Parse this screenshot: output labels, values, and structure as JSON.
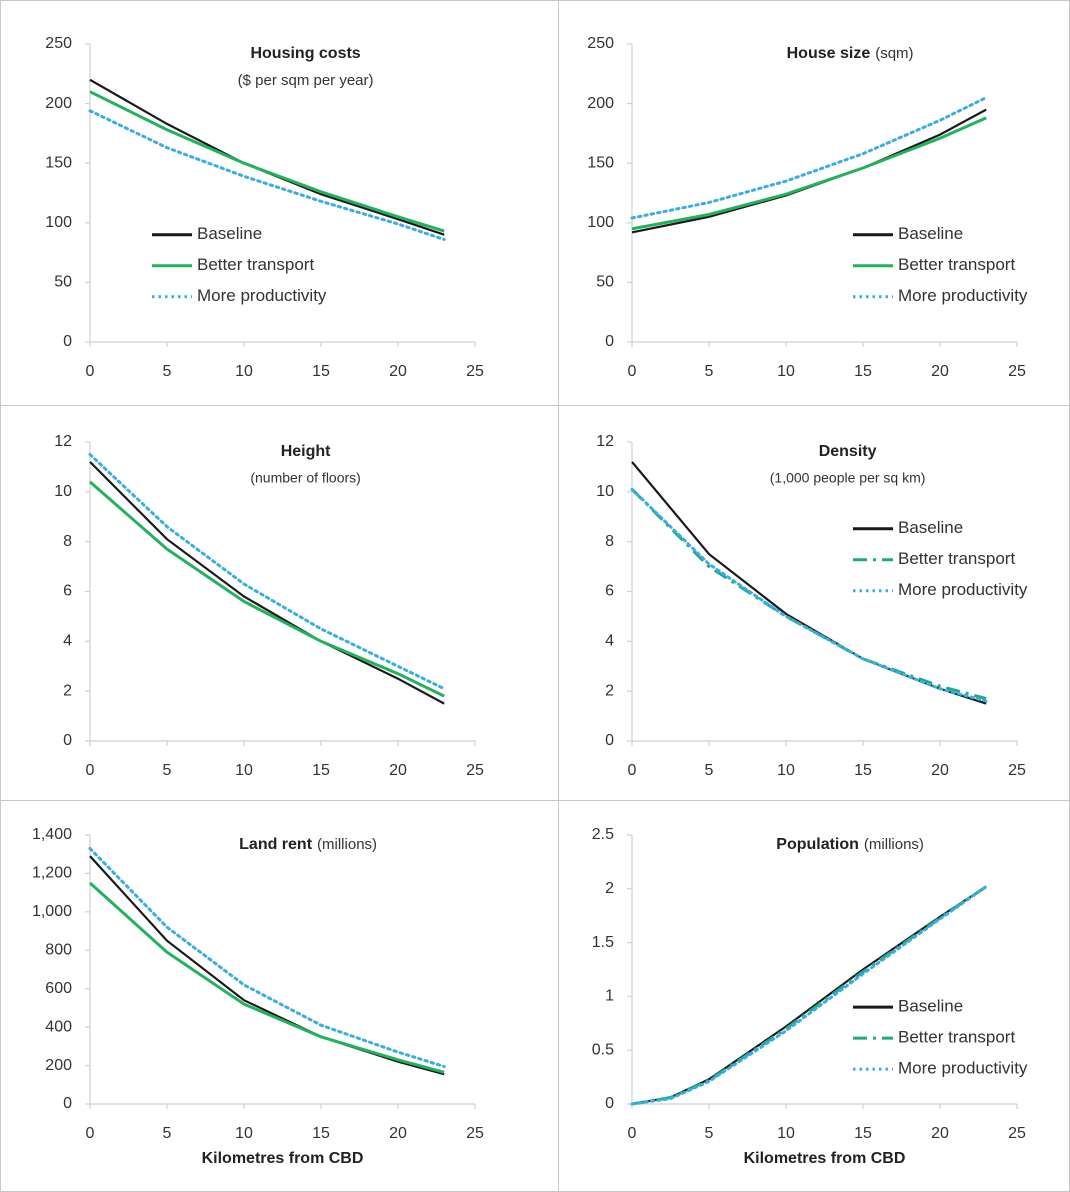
{
  "chart_data": [
    {
      "type": "line",
      "title": "Housing costs",
      "subtitle": "($ per sqm per year)",
      "x": [
        0,
        5,
        10,
        15,
        20,
        23
      ],
      "series": [
        {
          "name": "Baseline",
          "color": "#1a1a1a",
          "style": "solid",
          "values": [
            220,
            183,
            150,
            124,
            103,
            90
          ]
        },
        {
          "name": "Better transport",
          "color": "#22b15c",
          "style": "solid",
          "values": [
            210,
            178,
            150,
            126,
            105,
            93
          ]
        },
        {
          "name": "More productivity",
          "color": "#3aaee0",
          "style": "dotted",
          "values": [
            194,
            163,
            139,
            118,
            99,
            86
          ]
        }
      ],
      "xlim": [
        0,
        25
      ],
      "xticks": [
        0,
        5,
        10,
        15,
        20,
        25
      ],
      "ylim": [
        0,
        250
      ],
      "yticks": [
        0,
        50,
        100,
        150,
        200,
        250
      ],
      "legend": "middle-left"
    },
    {
      "type": "line",
      "title": "House size",
      "subtitle": "(sqm)",
      "x": [
        0,
        5,
        10,
        15,
        20,
        23
      ],
      "series": [
        {
          "name": "Baseline",
          "color": "#1a1a1a",
          "style": "solid",
          "values": [
            92,
            105,
            123,
            146,
            174,
            195
          ]
        },
        {
          "name": "Better transport",
          "color": "#22b15c",
          "style": "solid",
          "values": [
            95,
            107,
            124,
            146,
            171,
            188
          ]
        },
        {
          "name": "More productivity",
          "color": "#3aaee0",
          "style": "dotted",
          "values": [
            104,
            117,
            135,
            158,
            186,
            205
          ]
        }
      ],
      "xlim": [
        0,
        25
      ],
      "xticks": [
        0,
        5,
        10,
        15,
        20,
        25
      ],
      "ylim": [
        0,
        250
      ],
      "yticks": [
        0,
        50,
        100,
        150,
        200,
        250
      ],
      "legend": "middle-right"
    },
    {
      "type": "line",
      "title": "Height",
      "subtitle": "(number of floors)",
      "x": [
        0,
        5,
        10,
        15,
        20,
        23
      ],
      "series": [
        {
          "name": "Baseline",
          "color": "#1a1a1a",
          "style": "solid",
          "values": [
            11.2,
            8.1,
            5.8,
            4.0,
            2.5,
            1.5
          ]
        },
        {
          "name": "Better transport",
          "color": "#22b15c",
          "style": "solid",
          "values": [
            10.4,
            7.7,
            5.6,
            4.0,
            2.7,
            1.8
          ]
        },
        {
          "name": "More productivity",
          "color": "#3aaee0",
          "style": "dotted",
          "values": [
            11.5,
            8.6,
            6.3,
            4.5,
            3.0,
            2.1
          ]
        }
      ],
      "xlim": [
        0,
        25
      ],
      "xticks": [
        0,
        5,
        10,
        15,
        20,
        25
      ],
      "ylim": [
        0,
        12
      ],
      "yticks": [
        0,
        2,
        4,
        6,
        8,
        10,
        12
      ]
    },
    {
      "type": "line",
      "title": "Density",
      "subtitle": "(1,000 people per sq km)",
      "x": [
        0,
        5,
        10,
        15,
        20,
        23
      ],
      "series": [
        {
          "name": "Baseline",
          "color": "#1a1a1a",
          "style": "solid",
          "values": [
            11.2,
            7.5,
            5.1,
            3.3,
            2.1,
            1.5
          ]
        },
        {
          "name": "Better transport",
          "color": "#20a884",
          "style": "dashdot",
          "values": [
            10.1,
            7.0,
            5.0,
            3.3,
            2.2,
            1.7
          ]
        },
        {
          "name": "More productivity",
          "color": "#3aaee0",
          "style": "dotted",
          "values": [
            10.1,
            7.1,
            5.0,
            3.3,
            2.1,
            1.6
          ]
        }
      ],
      "xlim": [
        0,
        25
      ],
      "xticks": [
        0,
        5,
        10,
        15,
        20,
        25
      ],
      "ylim": [
        0,
        12
      ],
      "yticks": [
        0,
        2,
        4,
        6,
        8,
        10,
        12
      ],
      "legend": "upper-right"
    },
    {
      "type": "line",
      "title": "Land rent",
      "subtitle": "(millions)",
      "xlabel": "Kilometres from CBD",
      "x": [
        0,
        5,
        10,
        15,
        20,
        23
      ],
      "series": [
        {
          "name": "Baseline",
          "color": "#1a1a1a",
          "style": "solid",
          "values": [
            1290,
            850,
            540,
            350,
            220,
            155
          ]
        },
        {
          "name": "Better transport",
          "color": "#22b15c",
          "style": "solid",
          "values": [
            1150,
            790,
            520,
            350,
            230,
            165
          ]
        },
        {
          "name": "More productivity",
          "color": "#3aaee0",
          "style": "dotted",
          "values": [
            1330,
            920,
            620,
            410,
            270,
            195
          ]
        }
      ],
      "xlim": [
        0,
        25
      ],
      "xticks": [
        0,
        5,
        10,
        15,
        20,
        25
      ],
      "ylim": [
        0,
        1400
      ],
      "yticks": [
        0,
        200,
        400,
        600,
        800,
        {
          "value": 1000,
          "label": "1,000"
        },
        {
          "value": 1200,
          "label": "1,200"
        },
        {
          "value": 1400,
          "label": "1,400"
        }
      ]
    },
    {
      "type": "line",
      "title": "Population",
      "subtitle": "(millions)",
      "xlabel": "Kilometres from CBD",
      "x": [
        0,
        2.5,
        5,
        10,
        15,
        20,
        23
      ],
      "series": [
        {
          "name": "Baseline",
          "color": "#1a1a1a",
          "style": "solid",
          "values": [
            0,
            0.06,
            0.23,
            0.72,
            1.25,
            1.74,
            2.02
          ]
        },
        {
          "name": "Better transport",
          "color": "#20a884",
          "style": "dashdot",
          "values": [
            0,
            0.06,
            0.22,
            0.7,
            1.23,
            1.73,
            2.02
          ]
        },
        {
          "name": "More productivity",
          "color": "#3aaee0",
          "style": "dotted",
          "values": [
            0,
            0.05,
            0.21,
            0.68,
            1.21,
            1.72,
            2.02
          ]
        }
      ],
      "xlim": [
        0,
        25
      ],
      "xticks": [
        0,
        5,
        10,
        15,
        20,
        25
      ],
      "ylim": [
        0,
        2.5
      ],
      "yticks": [
        0,
        0.5,
        1,
        1.5,
        2,
        2.5
      ],
      "legend": "middle-right"
    }
  ]
}
